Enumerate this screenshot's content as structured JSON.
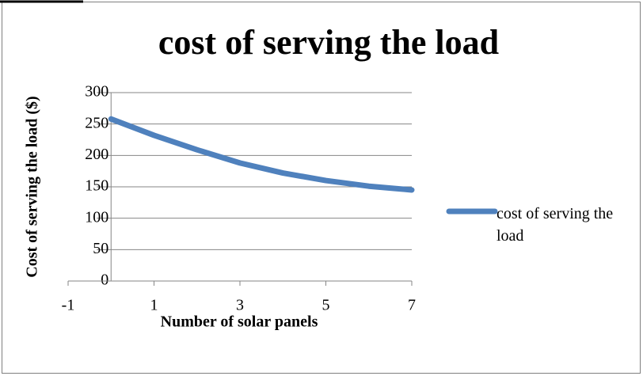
{
  "chart_data": {
    "type": "line",
    "title": "cost of serving the load",
    "xlabel": "Number of solar panels",
    "ylabel": "Cost of serving the load ($)",
    "x": [
      0,
      1,
      2,
      3,
      4,
      5,
      6,
      7
    ],
    "series": [
      {
        "name": "cost of serving the load",
        "color": "#4f81bd",
        "values": [
          258,
          232,
          209,
          188,
          172,
          160,
          151,
          145
        ]
      }
    ],
    "xlim": [
      -1,
      7
    ],
    "xticks": [
      -1,
      1,
      3,
      5,
      7
    ],
    "ylim": [
      0,
      300
    ],
    "yticks": [
      0,
      50,
      100,
      150,
      200,
      250,
      300
    ],
    "grid": true,
    "legend": "right"
  }
}
